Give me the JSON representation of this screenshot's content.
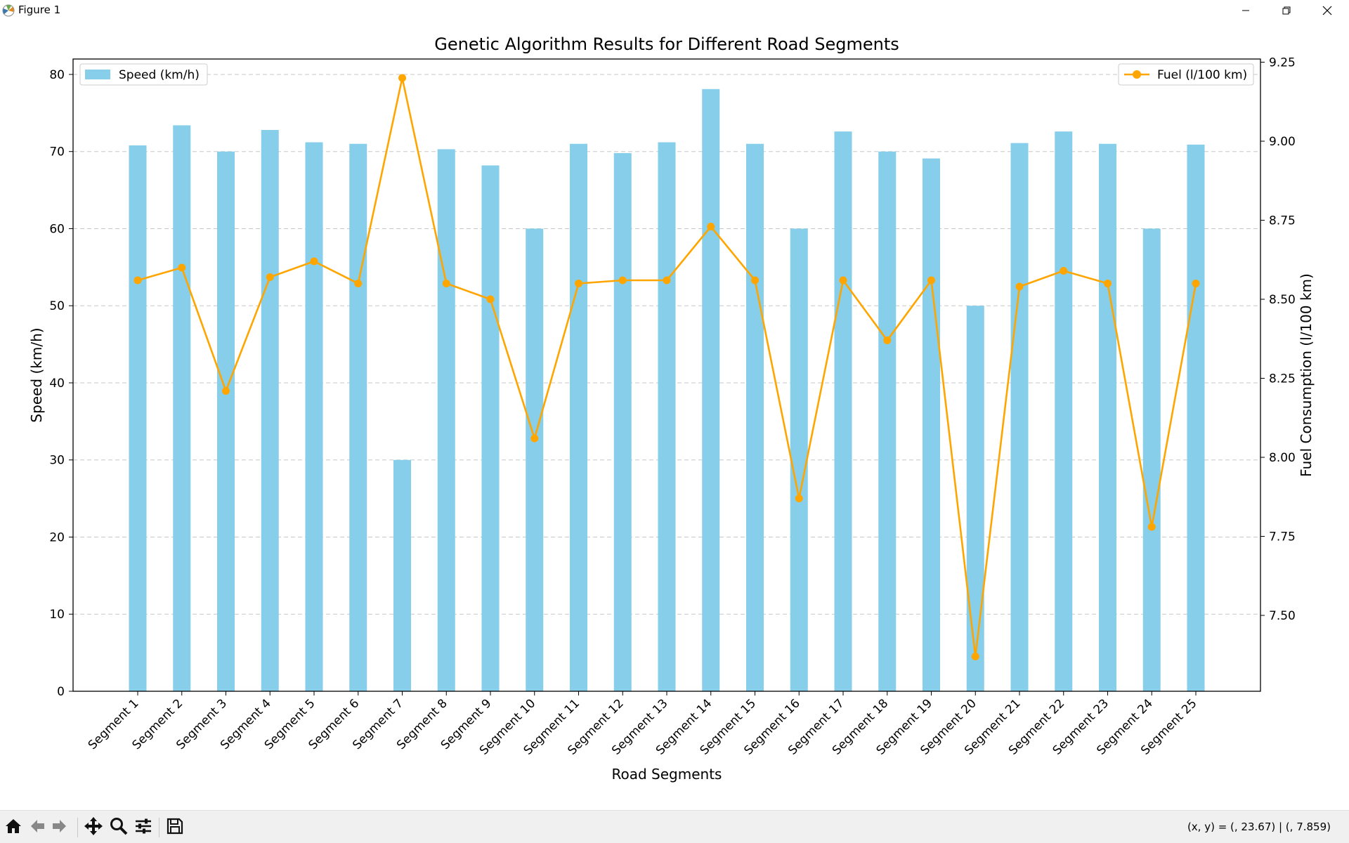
{
  "window": {
    "title": "Figure 1",
    "icons": {
      "app": "matplotlib-icon",
      "minimize": "minimize-icon",
      "maximize": "restore-icon",
      "close": "close-icon"
    }
  },
  "toolbar": {
    "icons": [
      "home-icon",
      "back-arrow-icon",
      "forward-arrow-icon",
      "pan-move-icon",
      "zoom-magnifier-icon",
      "configure-subplots-icon",
      "save-floppy-icon"
    ],
    "coordinates": "(x, y) = (, 23.67) | (, 7.859)"
  },
  "colors": {
    "bar": "#87ceeb",
    "line": "#ffa500",
    "grid": "#b0b0b0"
  },
  "chart_data": {
    "type": "bar",
    "title": "Genetic Algorithm Results for Different Road Segments",
    "xlabel": "Road Segments",
    "ylabel": "Speed (km/h)",
    "y2label": "Fuel Consumption (l/100 km)",
    "categories": [
      "Segment 1",
      "Segment 2",
      "Segment 3",
      "Segment 4",
      "Segment 5",
      "Segment 6",
      "Segment 7",
      "Segment 8",
      "Segment 9",
      "Segment 10",
      "Segment 11",
      "Segment 12",
      "Segment 13",
      "Segment 14",
      "Segment 15",
      "Segment 16",
      "Segment 17",
      "Segment 18",
      "Segment 19",
      "Segment 20",
      "Segment 21",
      "Segment 22",
      "Segment 23",
      "Segment 24",
      "Segment 25"
    ],
    "ylim": [
      0,
      82
    ],
    "y2lim": [
      7.26,
      9.26
    ],
    "yticks": [
      0,
      10,
      20,
      30,
      40,
      50,
      60,
      70,
      80
    ],
    "y2ticks": [
      7.5,
      7.75,
      8.0,
      8.25,
      8.5,
      8.75,
      9.0,
      9.25
    ],
    "y2tick_labels": [
      "7.50",
      "7.75",
      "8.00",
      "8.25",
      "8.50",
      "8.75",
      "9.00",
      "9.25"
    ],
    "grid": "y-dashed",
    "series": [
      {
        "name": "Speed (km/h)",
        "type": "bar",
        "axis": "left",
        "legend": "top-left",
        "values": [
          70.8,
          73.4,
          70.0,
          72.8,
          71.2,
          71.0,
          30.0,
          70.3,
          68.2,
          60.0,
          71.0,
          69.8,
          71.2,
          78.1,
          71.0,
          60.0,
          72.6,
          70.0,
          69.1,
          50.0,
          71.1,
          72.6,
          71.0,
          60.0,
          70.9
        ]
      },
      {
        "name": "Fuel (l/100 km)",
        "type": "line",
        "axis": "right",
        "legend": "top-right",
        "values": [
          8.56,
          8.6,
          8.21,
          8.57,
          8.62,
          8.55,
          9.2,
          8.55,
          8.5,
          8.06,
          8.55,
          8.56,
          8.56,
          8.73,
          8.56,
          7.87,
          8.56,
          8.37,
          8.56,
          7.37,
          8.54,
          8.59,
          8.55,
          7.78,
          8.55
        ]
      }
    ]
  }
}
